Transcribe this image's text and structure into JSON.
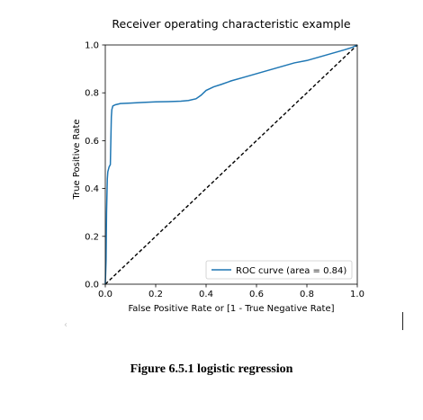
{
  "chart_data": {
    "type": "line",
    "title": "Receiver operating characteristic example",
    "xlabel": "False Positive Rate or [1 - True Negative Rate]",
    "ylabel": "True Positive Rate",
    "xlim": [
      0.0,
      1.0
    ],
    "ylim": [
      0.0,
      1.0
    ],
    "xticks": [
      "0.0",
      "0.2",
      "0.4",
      "0.6",
      "0.8",
      "1.0"
    ],
    "yticks": [
      "0.0",
      "0.2",
      "0.4",
      "0.6",
      "0.8",
      "1.0"
    ],
    "grid": false,
    "legend_position": "lower-right",
    "colors": {
      "roc": "#1f77b4",
      "chance": "#000000",
      "axes": "#000000"
    },
    "series": [
      {
        "name": "ROC curve (area = 0.84)",
        "style": "solid",
        "x": [
          0.0,
          0.003,
          0.005,
          0.008,
          0.01,
          0.015,
          0.02,
          0.022,
          0.024,
          0.026,
          0.03,
          0.04,
          0.06,
          0.1,
          0.15,
          0.2,
          0.25,
          0.3,
          0.33,
          0.36,
          0.38,
          0.4,
          0.43,
          0.46,
          0.5,
          0.55,
          0.6,
          0.65,
          0.7,
          0.75,
          0.8,
          0.85,
          0.9,
          0.95,
          0.98,
          1.0
        ],
        "y": [
          0.0,
          0.1,
          0.3,
          0.44,
          0.47,
          0.49,
          0.5,
          0.6,
          0.7,
          0.73,
          0.745,
          0.75,
          0.755,
          0.757,
          0.76,
          0.762,
          0.763,
          0.765,
          0.768,
          0.775,
          0.79,
          0.81,
          0.825,
          0.835,
          0.85,
          0.865,
          0.88,
          0.895,
          0.91,
          0.925,
          0.935,
          0.95,
          0.965,
          0.98,
          0.99,
          1.0
        ]
      },
      {
        "name": "chance",
        "style": "dashed",
        "x": [
          0.0,
          1.0
        ],
        "y": [
          0.0,
          1.0
        ]
      }
    ]
  },
  "legend": {
    "label": "ROC curve (area = 0.84)"
  },
  "caption": "Figure 6.5.1 logistic regression",
  "stray_glyph": "‹"
}
